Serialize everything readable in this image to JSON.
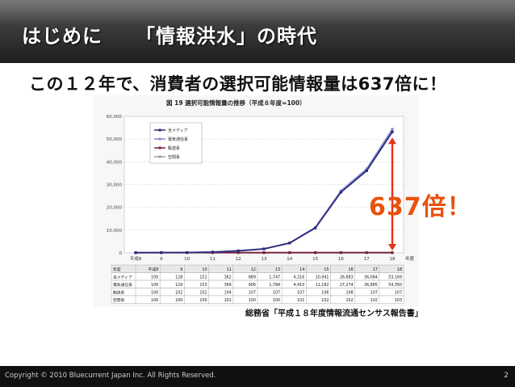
{
  "slide": {
    "title_left": "はじめに",
    "title_right": "「情報洪水」の時代",
    "subtitle": "この１２年で、消費者の選択可能情報量は637倍に！",
    "callout": "637倍！",
    "source": "総務省「平成１８年度情報流通センサス報告書」",
    "footer_copyright": "Copyright © 2010 Bluecurrent Japan Inc. All Rights Reserved.",
    "page_number": "2",
    "accent_color": "#e8520c"
  },
  "chart_data": {
    "type": "line",
    "title": "図 19 選択可能情報量の推移（平成８年度=100）",
    "x": [
      "平成8",
      "9",
      "10",
      "11",
      "12",
      "13",
      "14",
      "15",
      "16",
      "17",
      "18"
    ],
    "x_unit": "年度",
    "ylim": [
      0,
      60000
    ],
    "yticks": [
      "0",
      "10,000",
      "20,000",
      "30,000",
      "40,000",
      "50,000",
      "60,000"
    ],
    "grid": true,
    "legend_position": "top-left",
    "series": [
      {
        "name": "全メディア",
        "color": "#2a2a7a",
        "values": [
          100,
          128,
          152,
          362,
          889,
          1747,
          4316,
          10941,
          26683,
          36084,
          53169
        ]
      },
      {
        "name": "電気通信系",
        "color": "#8a8ad0",
        "values": [
          100,
          129,
          153,
          369,
          906,
          1784,
          4410,
          11182,
          27274,
          36885,
          54350
        ]
      },
      {
        "name": "輸送系",
        "color": "#7a1f3a",
        "values": [
          100,
          102,
          102,
          104,
          107,
          107,
          107,
          106,
          108,
          107,
          107
        ]
      },
      {
        "name": "空間系",
        "color": "#a0a0a0",
        "values": [
          100,
          100,
          100,
          101,
          100,
          100,
          101,
          102,
          102,
          102,
          103
        ]
      }
    ],
    "table": {
      "header": [
        "年度",
        "平成8",
        "9",
        "10",
        "11",
        "12",
        "13",
        "14",
        "15",
        "16",
        "17",
        "18"
      ],
      "rows": [
        [
          "全メディア",
          "100",
          "128",
          "152",
          "362",
          "889",
          "1,747",
          "4,316",
          "10,941",
          "26,683",
          "36,084",
          "53,169"
        ],
        [
          "電気通信系",
          "100",
          "129",
          "153",
          "369",
          "906",
          "1,784",
          "4,410",
          "11,182",
          "27,274",
          "36,885",
          "54,350"
        ],
        [
          "輸送系",
          "100",
          "102",
          "102",
          "104",
          "107",
          "107",
          "107",
          "106",
          "108",
          "107",
          "107"
        ],
        [
          "空間系",
          "100",
          "100",
          "100",
          "101",
          "100",
          "100",
          "101",
          "102",
          "102",
          "102",
          "103"
        ]
      ]
    }
  }
}
